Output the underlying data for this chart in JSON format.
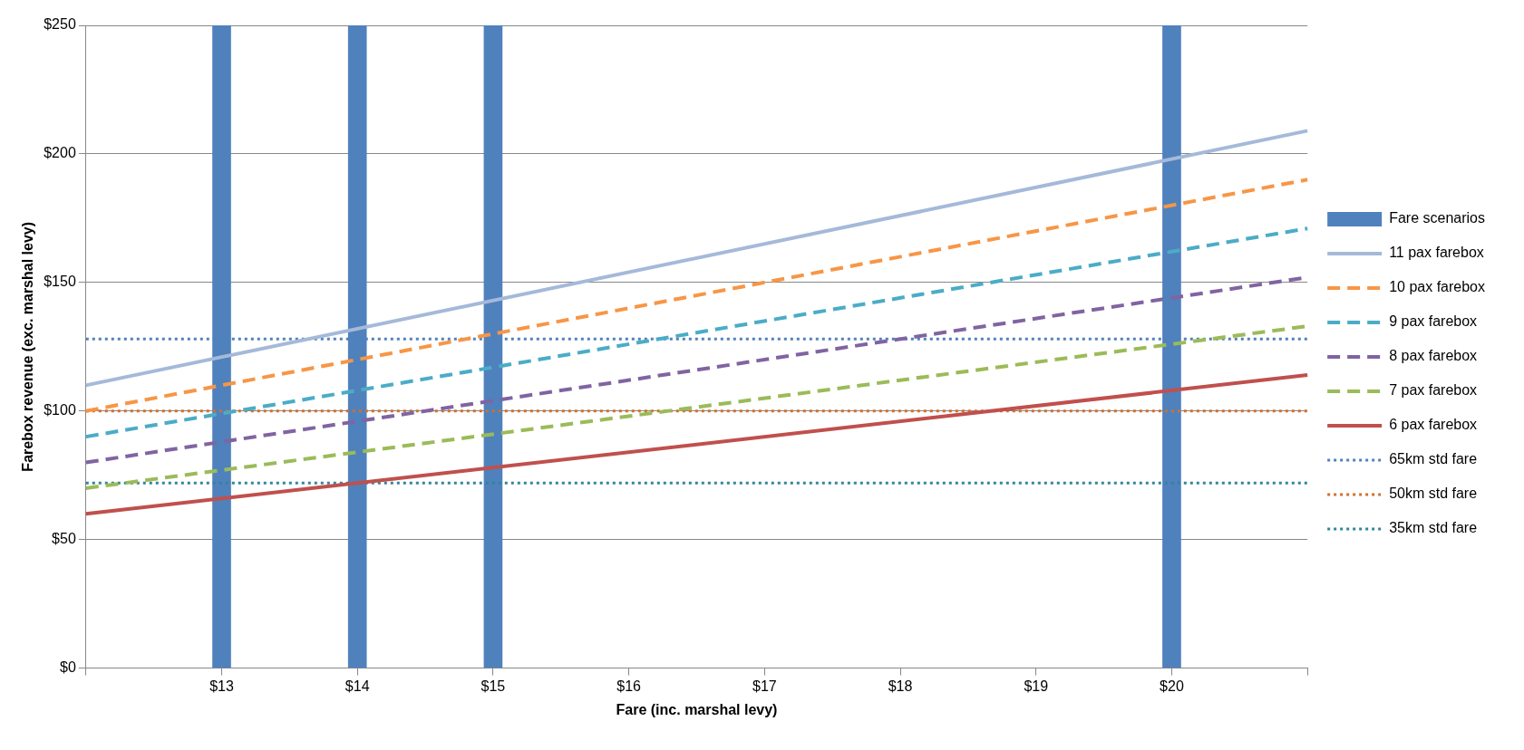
{
  "chart_data": {
    "type": "line",
    "xlabel": "Fare (inc. marshal levy)",
    "ylabel": "Farebox revenue (exc. marshal levy)",
    "xlim": [
      12,
      21
    ],
    "xticks": [
      {
        "value": 12,
        "label": null
      },
      {
        "value": 13,
        "label": "$13"
      },
      {
        "value": 14,
        "label": "$14"
      },
      {
        "value": 15,
        "label": "$15"
      },
      {
        "value": 16,
        "label": "$16"
      },
      {
        "value": 17,
        "label": "$17"
      },
      {
        "value": 18,
        "label": "$18"
      },
      {
        "value": 19,
        "label": "$19"
      },
      {
        "value": 20,
        "label": "$20"
      },
      {
        "value": 21,
        "label": null
      }
    ],
    "ylim": [
      0,
      250
    ],
    "yticks": [
      {
        "value": 0,
        "label": "$0"
      },
      {
        "value": 50,
        "label": "$50"
      },
      {
        "value": 100,
        "label": "$100"
      },
      {
        "value": 150,
        "label": "$150"
      },
      {
        "value": 200,
        "label": "$200"
      },
      {
        "value": 250,
        "label": "$250"
      }
    ],
    "grid": "y",
    "legend": "right",
    "marker": "none",
    "series": [
      {
        "name": "Fare scenarios",
        "type": "bar",
        "color": "#4f81bd",
        "x": [
          13,
          14,
          15,
          20
        ],
        "values": [
          250,
          250,
          250,
          250
        ]
      },
      {
        "name": "11 pax farebox",
        "color": "#a5b9d9",
        "line_style": "solid",
        "x": [
          12,
          21
        ],
        "values": [
          110,
          209
        ]
      },
      {
        "name": "10 pax farebox",
        "color": "#f79646",
        "line_style": "dashed",
        "x": [
          12,
          21
        ],
        "values": [
          100,
          190
        ]
      },
      {
        "name": "9 pax farebox",
        "color": "#4bacc6",
        "line_style": "dashed",
        "x": [
          12,
          21
        ],
        "values": [
          90,
          171
        ]
      },
      {
        "name": "8 pax farebox",
        "color": "#8064a2",
        "line_style": "dashed",
        "x": [
          12,
          21
        ],
        "values": [
          80,
          152
        ]
      },
      {
        "name": "7 pax farebox",
        "color": "#9bbb59",
        "line_style": "dashed",
        "x": [
          12,
          21
        ],
        "values": [
          70,
          133
        ]
      },
      {
        "name": "6 pax farebox",
        "color": "#c0504d",
        "line_style": "solid",
        "x": [
          12,
          21
        ],
        "values": [
          60,
          114
        ]
      },
      {
        "name": "65km std fare",
        "color": "#4f81bd",
        "line_style": "dotted",
        "x": [
          12,
          21
        ],
        "values": [
          128,
          128
        ]
      },
      {
        "name": "50km std fare",
        "color": "#d0702c",
        "line_style": "dotted",
        "x": [
          12,
          21
        ],
        "values": [
          100,
          100
        ]
      },
      {
        "name": "35km std fare",
        "color": "#31859c",
        "line_style": "dotted",
        "x": [
          12,
          21
        ],
        "values": [
          72,
          72
        ]
      }
    ]
  }
}
